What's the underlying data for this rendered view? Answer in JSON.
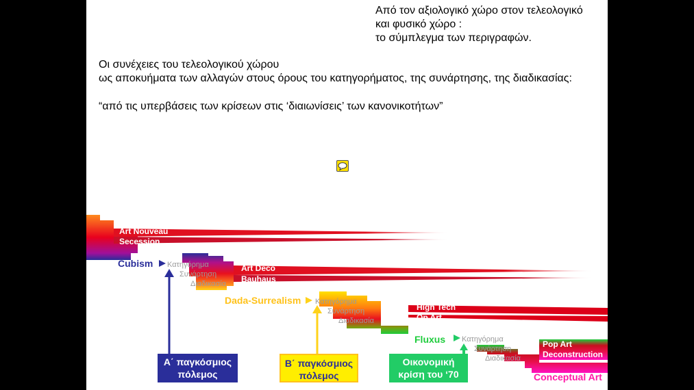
{
  "title": {
    "line1": "Από τον αξιολογικό χώρο στον τελεολογικό",
    "line2": "και φυσικό χώρο :",
    "line3": "το σύμπλεγμα των περιγραφών."
  },
  "intro": {
    "line1": "Οι συνέχειες του τελεολογικού χώρου",
    "line2": "ως αποκυήματα των αλλαγών στους όρους του κατηγορήματος, της συνάρτησης, της διαδικασίας:",
    "quote": "“από τις υπερβάσεις των κρίσεων στις ‘διαιωνίσεις’ των κανονικοτήτων”"
  },
  "icons": {
    "comment": "speech-bubble-icon"
  },
  "movements": {
    "art_nouveau": "Art Nouveau",
    "secession": "Secession",
    "art_deco": "Art Deco",
    "bauhaus": "Bauhaus",
    "high_tech": "High Tech",
    "op_art": "Op Art",
    "pop_art": "Pop Art",
    "deconstruction": "Deconstruction"
  },
  "eras": {
    "cubism": "Cubism",
    "dada": "Dada-Surrealism",
    "fluxus": "Fluxus",
    "conceptual": "Conceptual Art"
  },
  "categories": {
    "c1": {
      "a": "Κατηγόρημα",
      "b": "Συνάρτηση",
      "c": "Διαδικασία"
    },
    "c2": {
      "a": "Κατηγόρημα",
      "b": "Συνάρτηση",
      "c": "Διαδικασία"
    },
    "c3": {
      "a": "Κατηγόρημα",
      "b": "Συνάρτηση",
      "c": "Διαδικασία"
    }
  },
  "events": {
    "ww1": {
      "line1": "Α΄ παγκόσμιος",
      "line2": "πόλεμος",
      "color": "#2a2e9a"
    },
    "ww2": {
      "line1": "Β΄ παγκόσμιος",
      "line2": "πόλεμος",
      "color": "#ffee00"
    },
    "crisis": {
      "line1": "Οικονομική",
      "line2": "κρίση του ‘70",
      "color": "#22cc66"
    }
  },
  "colors": {
    "blue": "#2a2e9a",
    "yellow": "#ffd21a",
    "green": "#22cc66",
    "magenta": "#ff1aa8",
    "red": "#dd0018",
    "orange": "#ff8a1e"
  }
}
